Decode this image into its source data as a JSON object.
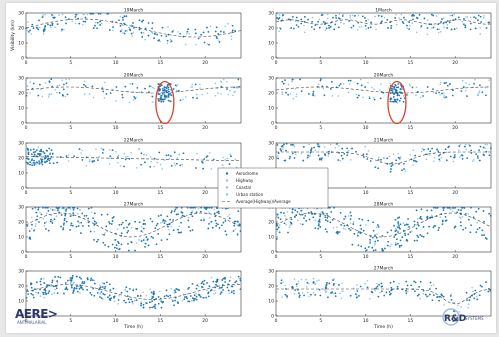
{
  "slide": {
    "logo_left": "AERE>",
    "logo_left_sub": "ANTIMALARIAL",
    "logo_right": "R&D",
    "logo_right_sub": "SYSTEMS"
  },
  "colors": {
    "dots": "#1f77b4",
    "light_dots": "#8fc4e8",
    "mean_line": "#444444",
    "highlight": "#d9452f"
  },
  "chart_data": [
    {
      "type": "scatter",
      "title": "19March",
      "ylabel": "Visibility (km)",
      "xlabel": "",
      "xlim": [
        0,
        24
      ],
      "ylim": [
        0,
        30
      ],
      "xticks": [
        0,
        5,
        10,
        15,
        20
      ],
      "yticks": [
        0,
        10,
        20,
        30
      ],
      "shape": "peak_mid",
      "highlight": null
    },
    {
      "type": "scatter",
      "title": "1March",
      "ylabel": "",
      "xlabel": "",
      "xlim": [
        0,
        24
      ],
      "ylim": [
        0,
        30
      ],
      "xticks": [
        0,
        5,
        10,
        15,
        20
      ],
      "yticks": [
        0,
        10,
        20,
        30
      ],
      "shape": "flat_high",
      "highlight": null
    },
    {
      "type": "scatter",
      "title": "20March",
      "ylabel": "",
      "xlabel": "",
      "xlim": [
        0,
        24
      ],
      "ylim": [
        0,
        30
      ],
      "xticks": [
        0,
        5,
        10,
        15,
        20
      ],
      "yticks": [
        0,
        10,
        20,
        30
      ],
      "shape": "spike",
      "highlight": {
        "x": 15.5
      }
    },
    {
      "type": "scatter",
      "title": "20March",
      "ylabel": "",
      "xlabel": "",
      "xlim": [
        0,
        24
      ],
      "ylim": [
        0,
        30
      ],
      "xticks": [
        0,
        5,
        10,
        15,
        20
      ],
      "yticks": [
        0,
        10,
        20,
        30
      ],
      "shape": "spike",
      "highlight": {
        "x": 13.5
      }
    },
    {
      "type": "scatter",
      "title": "22March",
      "ylabel": "",
      "xlabel": "",
      "xlim": [
        0,
        24
      ],
      "ylim": [
        0,
        30
      ],
      "xticks": [
        0,
        5,
        10,
        15,
        20
      ],
      "yticks": [
        0,
        10,
        20,
        30
      ],
      "shape": "sparse",
      "highlight": null
    },
    {
      "type": "scatter",
      "title": "21March",
      "ylabel": "",
      "xlabel": "",
      "xlim": [
        0,
        24
      ],
      "ylim": [
        0,
        30
      ],
      "xticks": [
        0,
        5,
        10,
        15,
        20
      ],
      "yticks": [
        0,
        10,
        20,
        30
      ],
      "shape": "midday_dip",
      "highlight": null
    },
    {
      "type": "scatter",
      "title": "27March",
      "ylabel": "",
      "xlabel": "",
      "xlim": [
        0,
        24
      ],
      "ylim": [
        0,
        30
      ],
      "xticks": [
        0,
        5,
        10,
        15,
        20
      ],
      "yticks": [
        0,
        10,
        20,
        30
      ],
      "shape": "dense",
      "highlight": null
    },
    {
      "type": "scatter",
      "title": "28March",
      "ylabel": "",
      "xlabel": "",
      "xlim": [
        0,
        24
      ],
      "ylim": [
        0,
        30
      ],
      "xticks": [
        0,
        5,
        10,
        15,
        20
      ],
      "yticks": [
        0,
        10,
        20,
        30
      ],
      "shape": "dense",
      "highlight": null
    },
    {
      "type": "scatter",
      "title": "",
      "ylabel": "",
      "xlabel": "Time (h)",
      "xlim": [
        0,
        24
      ],
      "ylim": [
        0,
        30
      ],
      "xticks": [
        0,
        5,
        10,
        15,
        20
      ],
      "yticks": [
        0,
        10,
        20,
        30
      ],
      "shape": "band_low",
      "highlight": null
    },
    {
      "type": "scatter",
      "title": "27March",
      "ylabel": "",
      "xlabel": "Time (h)",
      "xlim": [
        0,
        24
      ],
      "ylim": [
        0,
        30
      ],
      "xticks": [
        0,
        5,
        10,
        15,
        20
      ],
      "yticks": [
        0,
        10,
        20,
        30
      ],
      "shape": "late_dip",
      "highlight": null
    }
  ],
  "legend": {
    "placement": "center",
    "entries": [
      {
        "label": "Aerodrome",
        "style": "dot"
      },
      {
        "label": "Highway",
        "style": "dot_light"
      },
      {
        "label": "Coastal",
        "style": "dot_light"
      },
      {
        "label": "Urban station",
        "style": "dot_light"
      },
      {
        "label": "Average(Highway)/Average",
        "style": "line"
      }
    ]
  }
}
